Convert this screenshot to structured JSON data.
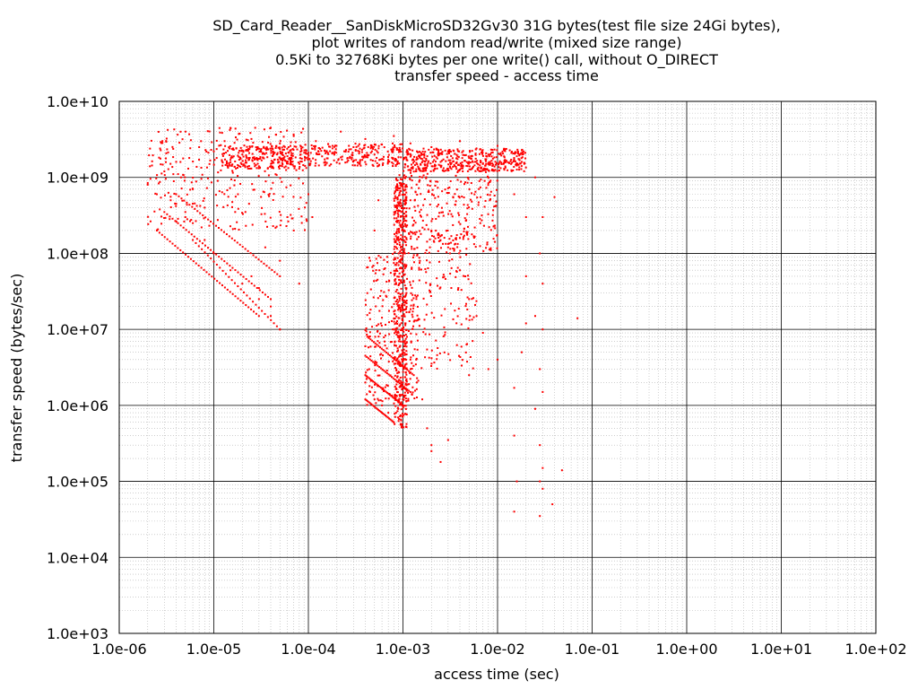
{
  "chart_data": {
    "type": "scatter",
    "title_lines": [
      "SD_Card_Reader__SanDiskMicroSD32Gv30 31G bytes(test file size 24Gi bytes),",
      "plot writes of random read/write (mixed size range)",
      "0.5Ki to 32768Ki bytes per one write() call, without O_DIRECT",
      "transfer speed - access time"
    ],
    "xlabel": "access time (sec)",
    "ylabel": "transfer speed (bytes/sec)",
    "x_scale": "log",
    "y_scale": "log",
    "xlim": [
      1e-06,
      100
    ],
    "ylim": [
      1000,
      10000000000.0
    ],
    "x_ticks": [
      "1.0e-06",
      "1.0e-05",
      "1.0e-04",
      "1.0e-03",
      "1.0e-02",
      "1.0e-01",
      "1.0e+00",
      "1.0e+01",
      "1.0e+02"
    ],
    "y_ticks": [
      "1.0e+03",
      "1.0e+04",
      "1.0e+05",
      "1.0e+06",
      "1.0e+07",
      "1.0e+08",
      "1.0e+09",
      "1.0e+10"
    ],
    "grid": true,
    "series_color": "#ff0000",
    "points": [
      [
        2e-06,
        800000000.0
      ],
      [
        2.5e-06,
        600000000.0
      ],
      [
        3e-06,
        1200000000.0
      ],
      [
        3.5e-06,
        500000000.0
      ],
      [
        4e-06,
        1600000000.0
      ],
      [
        4.5e-06,
        1000000000.0
      ],
      [
        5e-06,
        300000000.0
      ],
      [
        5.5e-06,
        1800000000.0
      ],
      [
        6e-06,
        700000000.0
      ],
      [
        7e-06,
        2500000000.0
      ],
      [
        8e-06,
        400000000.0
      ],
      [
        9e-06,
        1500000000.0
      ],
      [
        1e-05,
        2200000000.0
      ],
      [
        1.1e-05,
        900000000.0
      ],
      [
        1.3e-05,
        3000000000.0
      ],
      [
        1.5e-05,
        1700000000.0
      ],
      [
        1.8e-05,
        600000000.0
      ],
      [
        2e-05,
        2000000000.0
      ],
      [
        2.5e-05,
        3200000000.0
      ],
      [
        3e-05,
        1400000000.0
      ],
      [
        3.5e-05,
        2400000000.0
      ],
      [
        4e-05,
        4500000000.0
      ],
      [
        4.5e-05,
        1100000000.0
      ],
      [
        5e-05,
        2800000000.0
      ],
      [
        6e-05,
        1900000000.0
      ],
      [
        7e-05,
        3500000000.0
      ],
      [
        8e-05,
        1300000000.0
      ],
      [
        0.0001,
        2100000000.0
      ],
      [
        0.00012,
        3000000000.0
      ],
      [
        0.00015,
        1600000000.0
      ],
      [
        0.00018,
        2600000000.0
      ],
      [
        0.00022,
        4000000000.0
      ],
      [
        0.00026,
        1800000000.0
      ],
      [
        0.0003,
        2500000000.0
      ],
      [
        0.00035,
        1500000000.0
      ],
      [
        0.0004,
        3200000000.0
      ],
      [
        0.0005,
        2000000000.0
      ],
      [
        0.0006,
        2700000000.0
      ],
      [
        0.0007,
        1700000000.0
      ],
      [
        0.0008,
        3500000000.0
      ],
      [
        0.0009,
        2300000000.0
      ],
      [
        0.0012,
        2800000000.0
      ],
      [
        0.0015,
        1900000000.0
      ],
      [
        0.002,
        2500000000.0
      ],
      [
        0.0025,
        1600000000.0
      ],
      [
        0.003,
        2200000000.0
      ],
      [
        0.004,
        3000000000.0
      ],
      [
        0.005,
        1800000000.0
      ],
      [
        0.006,
        2400000000.0
      ],
      [
        0.007,
        1500000000.0
      ],
      [
        0.008,
        2000000000.0
      ],
      [
        0.01,
        2600000000.0
      ],
      [
        0.012,
        1700000000.0
      ],
      [
        0.014,
        2100000000.0
      ],
      [
        0.016,
        1900000000.0
      ],
      [
        0.018,
        1600000000.0
      ],
      [
        0.025,
        1000000000.0
      ],
      [
        0.04,
        550000000.0
      ],
      [
        0.03,
        300000000.0
      ],
      [
        0.02,
        300000000.0
      ],
      [
        0.015,
        600000000.0
      ],
      [
        0.028,
        100000000.0
      ],
      [
        0.02,
        50000000.0
      ],
      [
        0.03,
        40000000.0
      ],
      [
        0.025,
        15000000.0
      ],
      [
        0.07,
        14000000.0
      ],
      [
        0.03,
        10000000.0
      ],
      [
        0.02,
        12000000.0
      ],
      [
        0.018,
        5000000.0
      ],
      [
        0.028,
        3000000.0
      ],
      [
        0.03,
        1500000.0
      ],
      [
        0.025,
        900000.0
      ],
      [
        0.015,
        1700000.0
      ],
      [
        0.015,
        400000.0
      ],
      [
        0.028,
        300000.0
      ],
      [
        0.03,
        150000.0
      ],
      [
        0.048,
        140000.0
      ],
      [
        0.016,
        100000.0
      ],
      [
        0.028,
        100000.0
      ],
      [
        0.03,
        80000.0
      ],
      [
        0.038,
        50000.0
      ],
      [
        0.015,
        40000.0
      ],
      [
        0.028,
        35000.0
      ],
      [
        0.01,
        4000000.0
      ],
      [
        0.008,
        3000000.0
      ],
      [
        0.005,
        2500000.0
      ],
      [
        0.003,
        350000.0
      ],
      [
        0.002,
        250000.0
      ],
      [
        0.0025,
        180000.0
      ],
      [
        0.0018,
        500000.0
      ],
      [
        0.002,
        300000.0
      ],
      [
        0.007,
        9000000.0
      ],
      [
        0.006,
        15000000.0
      ],
      [
        0.005,
        25000000.0
      ],
      [
        0.004,
        60000000.0
      ],
      [
        0.003,
        120000000.0
      ],
      [
        0.002,
        200000000.0
      ],
      [
        0.0015,
        350000000.0
      ],
      [
        0.0012,
        500000000.0
      ],
      [
        0.001,
        700000000.0
      ],
      [
        0.001,
        10000000.0
      ],
      [
        0.001,
        5000000.0
      ],
      [
        0.001,
        2000000.0
      ],
      [
        0.001,
        1000000.0
      ],
      [
        0.0009,
        30000000.0
      ],
      [
        0.0009,
        100000000.0
      ],
      [
        0.0008,
        600000.0
      ],
      [
        0.0007,
        800000.0
      ],
      [
        0.0006,
        1000000.0
      ],
      [
        0.0005,
        1200000.0
      ],
      [
        0.00045,
        1500000.0
      ],
      [
        0.0004,
        2000000.0
      ],
      [
        0.0004,
        6000000.0
      ],
      [
        0.00042,
        30000000.0
      ],
      [
        0.00045,
        80000000.0
      ],
      [
        0.0005,
        200000000.0
      ],
      [
        0.00055,
        500000000.0
      ],
      [
        0.0012,
        4000000.0
      ],
      [
        0.0014,
        2000000.0
      ],
      [
        0.0016,
        1200000.0
      ],
      [
        5e-05,
        10000000.0
      ],
      [
        4e-05,
        15000000.0
      ],
      [
        3e-05,
        25000000.0
      ],
      [
        2e-05,
        40000000.0
      ],
      [
        1.5e-05,
        60000000.0
      ],
      [
        1e-05,
        100000000.0
      ],
      [
        8e-06,
        150000000.0
      ],
      [
        6e-06,
        250000000.0
      ],
      [
        5e-06,
        350000000.0
      ],
      [
        4e-06,
        450000000.0
      ],
      [
        4e-05,
        20000000.0
      ],
      [
        3e-05,
        35000000.0
      ],
      [
        2.5e-05,
        50000000.0
      ],
      [
        6e-05,
        300000000.0
      ],
      [
        7e-05,
        200000000.0
      ],
      [
        5e-05,
        80000000.0
      ],
      [
        3.5e-05,
        120000000.0
      ],
      [
        8e-05,
        40000000.0
      ],
      [
        0.0001,
        600000000.0
      ],
      [
        0.00011,
        300000000.0
      ]
    ],
    "bands": [
      {
        "x0": 1.2e-05,
        "x1": 0.0001,
        "y0": 1300000000.0,
        "y1": 2600000000.0,
        "n": 260
      },
      {
        "x0": 0.0001,
        "x1": 0.001,
        "y0": 1400000000.0,
        "y1": 2800000000.0,
        "n": 220
      },
      {
        "x0": 0.001,
        "x1": 0.02,
        "y0": 1200000000.0,
        "y1": 2400000000.0,
        "n": 420
      },
      {
        "x0": 2e-06,
        "x1": 0.0001,
        "y0": 200000000.0,
        "y1": 4500000000.0,
        "n": 300
      },
      {
        "x0": 0.0008,
        "x1": 0.0011,
        "y0": 500000.0,
        "y1": 1000000000.0,
        "n": 500
      },
      {
        "x0": 0.0009,
        "x1": 0.01,
        "y0": 100000000.0,
        "y1": 1500000000.0,
        "n": 320
      },
      {
        "x0": 0.0004,
        "x1": 0.0015,
        "y0": 1000000.0,
        "y1": 100000000.0,
        "n": 240
      },
      {
        "x0": 0.0012,
        "x1": 0.006,
        "y0": 3000000.0,
        "y1": 200000000.0,
        "n": 160
      }
    ],
    "diagonals": [
      {
        "x0": 4e-06,
        "x1": 5e-05,
        "y0": 600000000.0,
        "y1": 50000000.0,
        "n": 40
      },
      {
        "x0": 3e-06,
        "x1": 4e-05,
        "y0": 350000000.0,
        "y1": 25000000.0,
        "n": 40
      },
      {
        "x0": 2.5e-06,
        "x1": 3e-05,
        "y0": 200000000.0,
        "y1": 15000000.0,
        "n": 40
      },
      {
        "x0": 6e-06,
        "x1": 5e-05,
        "y0": 150000000.0,
        "y1": 10000000.0,
        "n": 30
      },
      {
        "x0": 0.0004,
        "x1": 0.0008,
        "y0": 1200000.0,
        "y1": 600000.0,
        "n": 25
      },
      {
        "x0": 0.0004,
        "x1": 0.001,
        "y0": 2500000.0,
        "y1": 1000000.0,
        "n": 30
      },
      {
        "x0": 0.0004,
        "x1": 0.0012,
        "y0": 4500000.0,
        "y1": 1500000.0,
        "n": 30
      },
      {
        "x0": 0.00042,
        "x1": 0.0013,
        "y0": 8000000.0,
        "y1": 2500000.0,
        "n": 30
      }
    ]
  }
}
